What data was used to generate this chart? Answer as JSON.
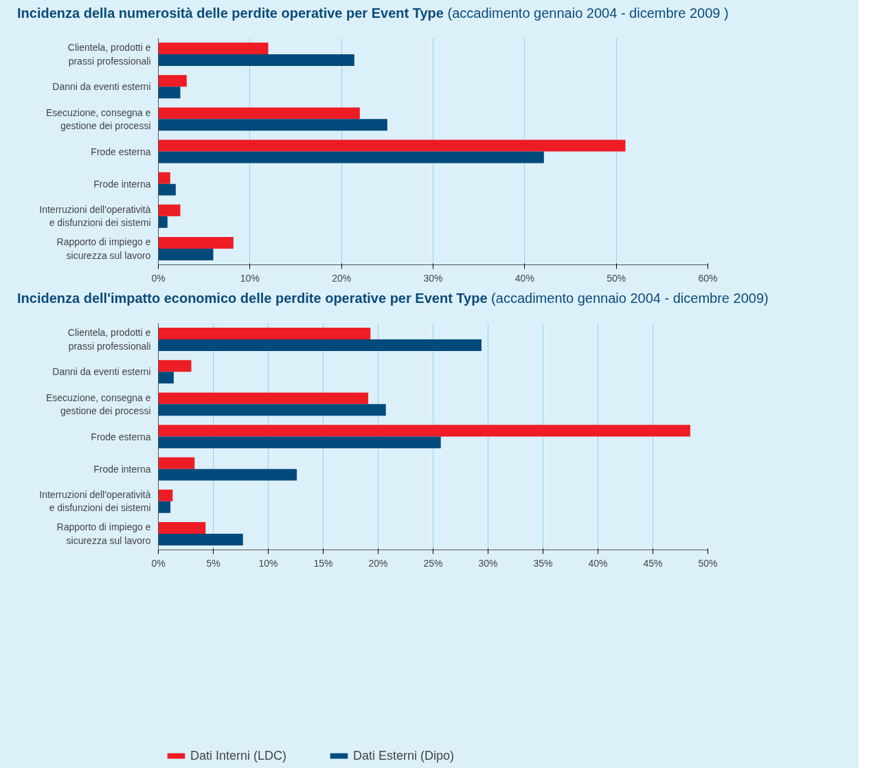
{
  "chart_data": [
    {
      "type": "bar",
      "orientation": "horizontal",
      "title": "Incidenza della numerosità delle perdite operative per Event Type",
      "subtitle": "(accadimento gennaio 2004 - dicembre 2009 )",
      "categories": [
        "Clientela, prodotti e\nprassi professionali",
        "Danni da eventi esterni",
        "Esecuzione, consegna e\ngestione dei processi",
        "Frode esterna",
        "Frode interna",
        "Interruzioni dell'operatività\ne disfunzioni dei sistemi",
        "Rapporto di impiego e\nsicurezza sul lavoro"
      ],
      "series": [
        {
          "color": "#ee1c25",
          "values": [
            12.0,
            3.1,
            22.0,
            51.0,
            1.3,
            2.4,
            8.2
          ]
        },
        {
          "color": "#004a7c",
          "values": [
            21.4,
            2.4,
            25.0,
            42.1,
            1.9,
            1.0,
            6.0
          ]
        }
      ],
      "xlim": [
        0,
        60
      ],
      "xticks": [
        {
          "value": 0,
          "label": "0%"
        },
        {
          "value": 10,
          "label": "10%"
        },
        {
          "value": 20,
          "label": "20%"
        },
        {
          "value": 30,
          "label": "30%"
        },
        {
          "value": 40,
          "label": "40%"
        },
        {
          "value": 50,
          "label": "50%"
        },
        {
          "value": 60,
          "label": "60%"
        }
      ],
      "grid": "x"
    },
    {
      "type": "bar",
      "orientation": "horizontal",
      "title": "Incidenza dell'impatto economico delle perdite operative per Event Type",
      "subtitle": "(accadimento gennaio 2004 - dicembre 2009)",
      "categories": [
        "Clientela, prodotti e\nprassi professionali",
        "Danni da eventi esterni",
        "Esecuzione, consegna e\ngestione dei processi",
        "Frode esterna",
        "Frode interna",
        "Interruzioni dell'operatività\ne disfunzioni dei sistemi",
        "Rapporto di impiego e\nsicurezza sul lavoro"
      ],
      "series": [
        {
          "name": "Dati Interni (LDC)",
          "color": "#ee1c25",
          "values": [
            19.3,
            3.0,
            19.1,
            48.4,
            3.3,
            1.3,
            4.3
          ]
        },
        {
          "name": "Dati Esterni (Dipo)",
          "color": "#004a7c",
          "values": [
            29.4,
            1.4,
            20.7,
            25.7,
            12.6,
            1.1,
            7.7
          ]
        }
      ],
      "xlim": [
        0,
        50
      ],
      "xticks": [
        {
          "value": 0,
          "label": "0%"
        },
        {
          "value": 5,
          "label": "5%"
        },
        {
          "value": 10,
          "label": "10%"
        },
        {
          "value": 15,
          "label": "15%"
        },
        {
          "value": 20,
          "label": "20%"
        },
        {
          "value": 25,
          "label": "25%"
        },
        {
          "value": 30,
          "label": "30%"
        },
        {
          "value": 35,
          "label": "35%"
        },
        {
          "value": 40,
          "label": "40%"
        },
        {
          "value": 45,
          "label": "45%"
        },
        {
          "value": 50,
          "label": "50%"
        }
      ],
      "grid": "x",
      "legend": "bottom left"
    }
  ]
}
